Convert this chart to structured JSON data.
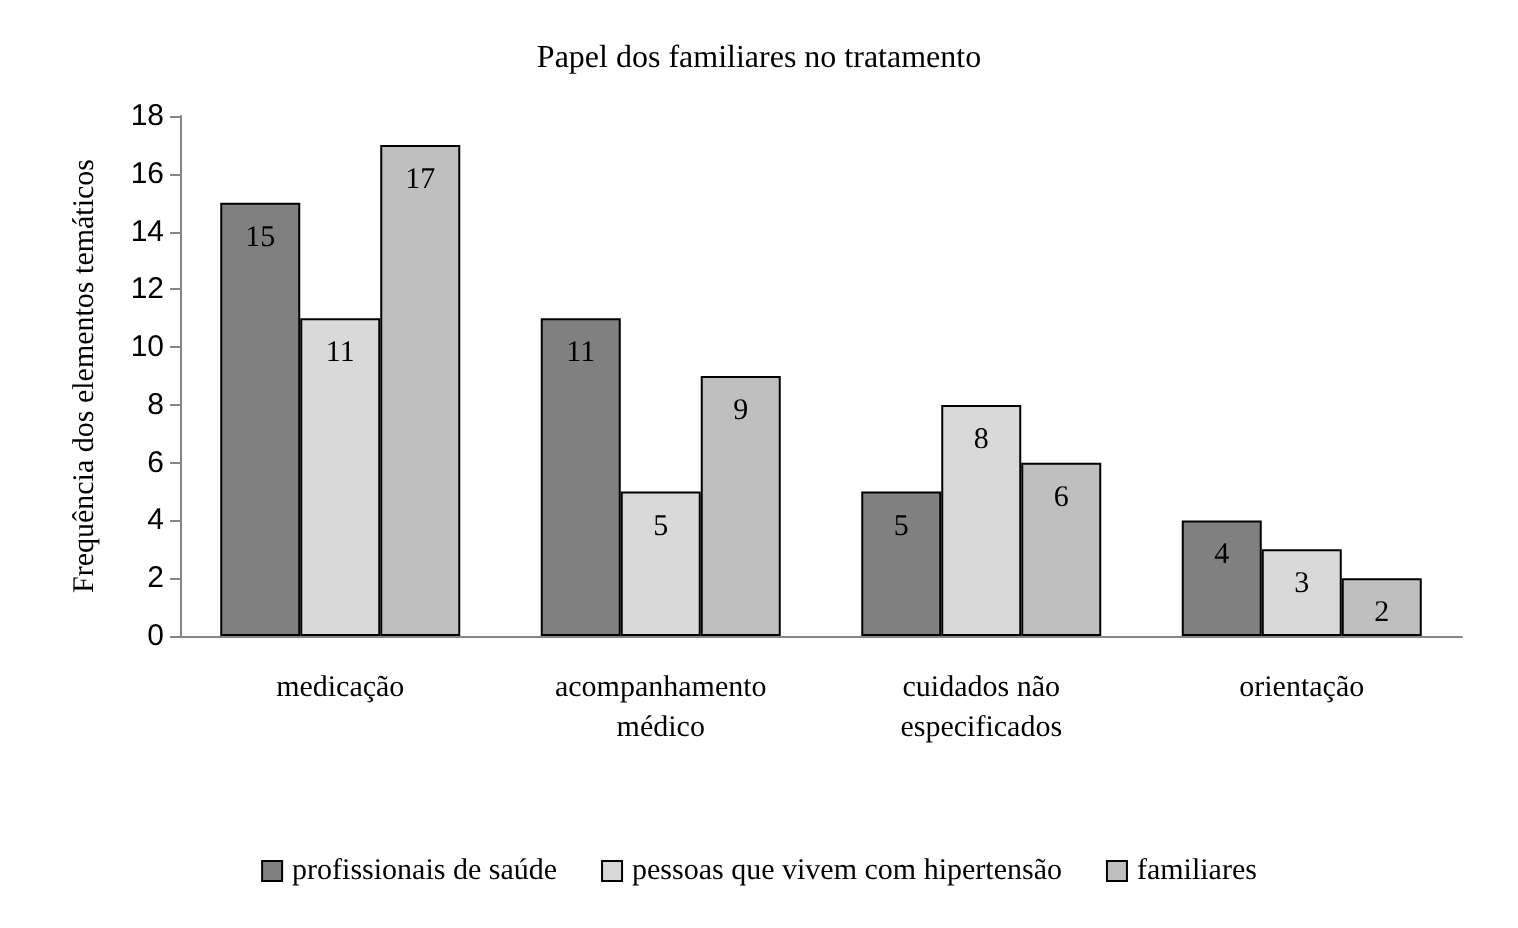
{
  "chart_data": {
    "type": "bar",
    "title": "Papel dos familiares no tratamento",
    "ylabel": "Frequência dos elementos temáticos",
    "categories": [
      "medicação",
      "acompanhamento\nmédico",
      "cuidados não\nespecificados",
      "orientação"
    ],
    "series": [
      {
        "name": "profissionais de saúde",
        "color": "#808080",
        "values": [
          15,
          11,
          5,
          4
        ]
      },
      {
        "name": "pessoas que vivem com hipertensão",
        "color": "#d9d9d9",
        "values": [
          11,
          5,
          8,
          3
        ]
      },
      {
        "name": "familiares",
        "color": "#bfbfbf",
        "values": [
          17,
          9,
          6,
          2
        ]
      }
    ],
    "ylim": [
      0,
      18
    ],
    "yticks": [
      0,
      2,
      4,
      6,
      8,
      10,
      12,
      14,
      16,
      18
    ],
    "grid": false,
    "legend": "bottom",
    "data_labels": true
  }
}
